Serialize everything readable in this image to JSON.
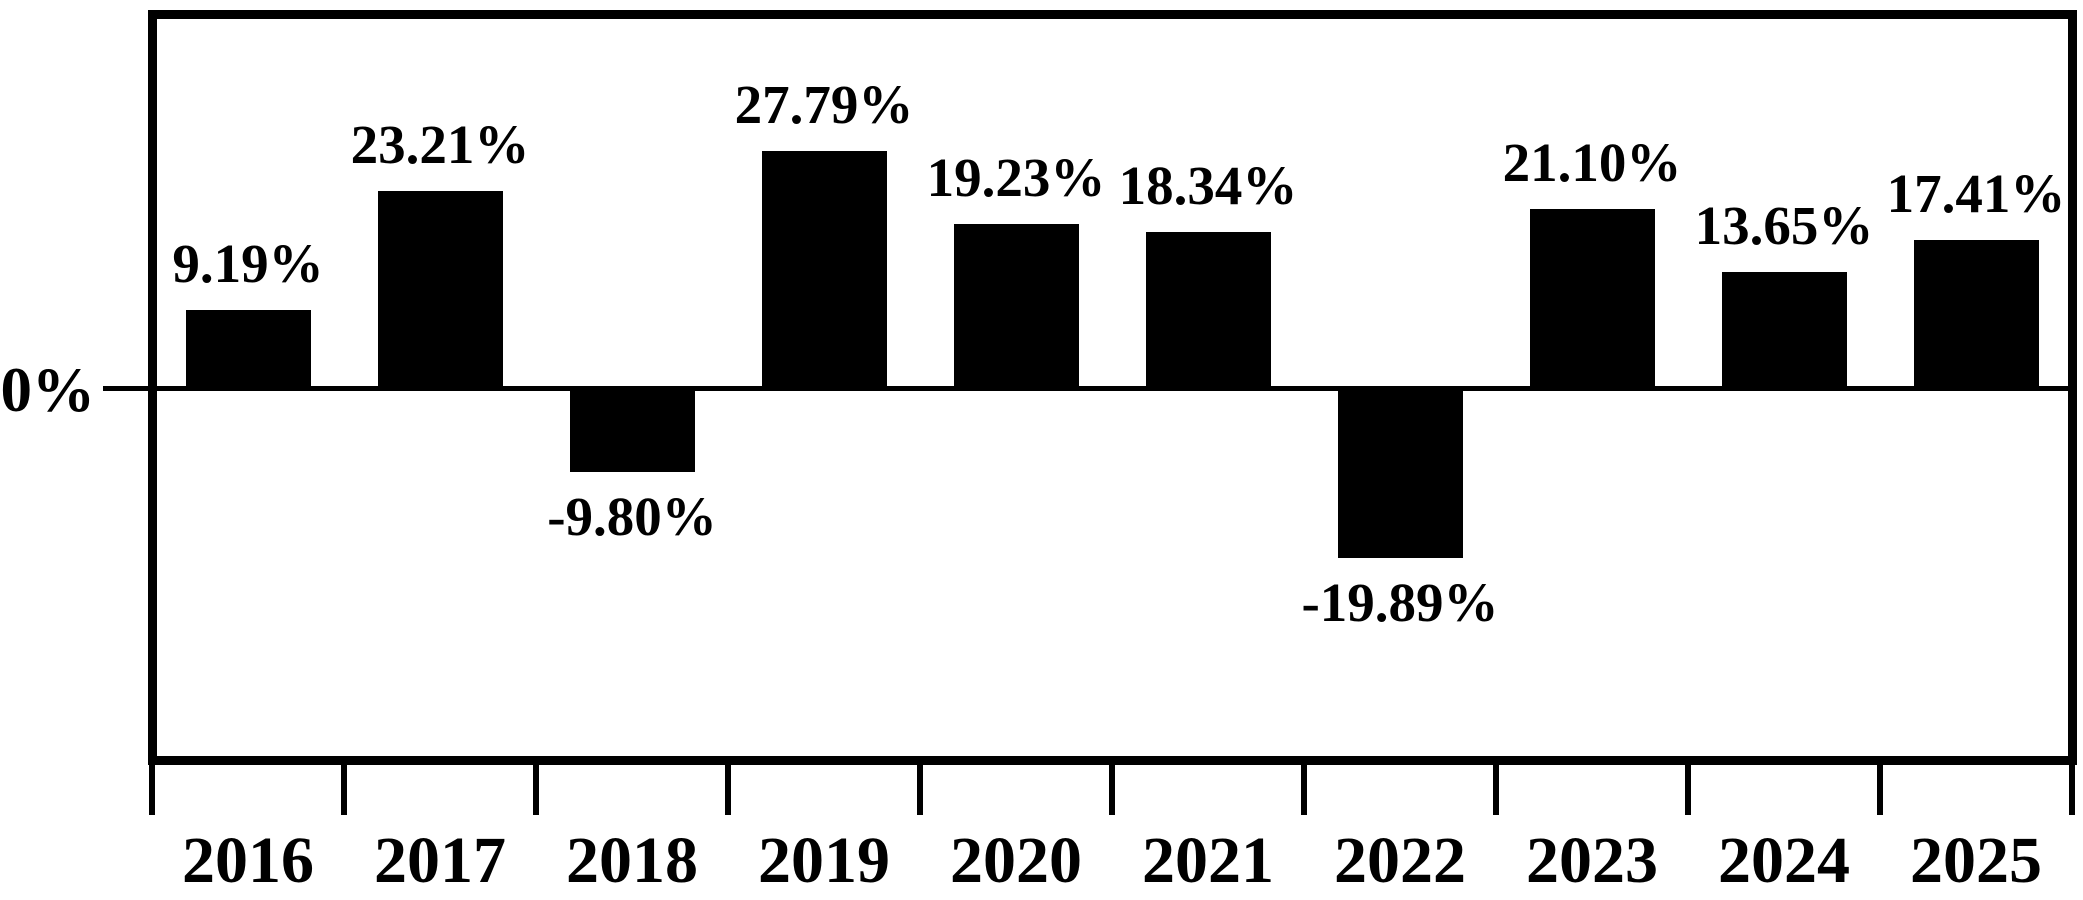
{
  "chart_data": {
    "type": "bar",
    "title": "",
    "xlabel": "",
    "ylabel": "",
    "categories": [
      "2016",
      "2017",
      "2018",
      "2019",
      "2020",
      "2021",
      "2022",
      "2023",
      "2024",
      "2025"
    ],
    "values": [
      9.19,
      23.21,
      -9.8,
      27.79,
      19.23,
      18.34,
      -19.89,
      21.1,
      13.65,
      17.41
    ],
    "value_labels": [
      "9.19%",
      "23.21%",
      "-9.80%",
      "27.79%",
      "19.23%",
      "18.34%",
      "-19.89%",
      "21.10%",
      "13.65%",
      "17.41%"
    ],
    "zero_label": "0%",
    "ylim": [
      -43,
      43
    ],
    "grid": false,
    "legend": false,
    "bar_color": "#000000",
    "axis_color": "#000000",
    "background_color": "#ffffff"
  }
}
